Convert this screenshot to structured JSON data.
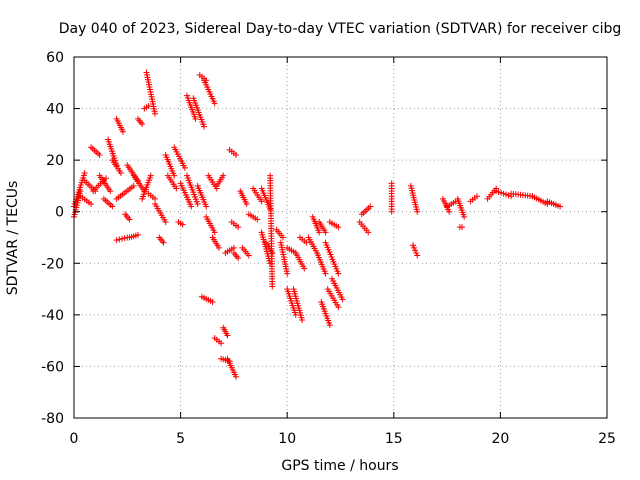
{
  "chart_data": {
    "type": "scatter",
    "title": "Day 040 of 2023, Sidereal Day-to-day VTEC variation (SDTVAR) for receiver cibg",
    "xlabel": "GPS time / hours",
    "ylabel": "SDTVAR / TECUs",
    "xlim": [
      0,
      25
    ],
    "ylim": [
      -80,
      60
    ],
    "xticks": [
      "0",
      "5",
      "10",
      "15",
      "20",
      "25"
    ],
    "yticks": [
      "-80",
      "-60",
      "-40",
      "-20",
      "0",
      "20",
      "40",
      "60"
    ],
    "grid": true,
    "marker": "+",
    "color": "#ff0000",
    "series": [
      {
        "name": "SDTVAR",
        "segments": [
          {
            "x": [
              0.0,
              0.5
            ],
            "y": [
              2,
              15
            ]
          },
          {
            "x": [
              0.0,
              0.3
            ],
            "y": [
              -2,
              8
            ]
          },
          {
            "x": [
              0.3,
              0.8
            ],
            "y": [
              6,
              3
            ]
          },
          {
            "x": [
              0.5,
              1.0
            ],
            "y": [
              12,
              8
            ]
          },
          {
            "x": [
              0.8,
              1.2
            ],
            "y": [
              25,
              22
            ]
          },
          {
            "x": [
              0.9,
              1.5
            ],
            "y": [
              8,
              13
            ]
          },
          {
            "x": [
              1.2,
              1.7
            ],
            "y": [
              14,
              8
            ]
          },
          {
            "x": [
              1.4,
              1.8
            ],
            "y": [
              5,
              2
            ]
          },
          {
            "x": [
              1.6,
              2.0
            ],
            "y": [
              28,
              18
            ]
          },
          {
            "x": [
              1.8,
              2.2
            ],
            "y": [
              20,
              15
            ]
          },
          {
            "x": [
              2.0,
              2.3
            ],
            "y": [
              36,
              31
            ]
          },
          {
            "x": [
              2.0,
              2.5
            ],
            "y": [
              -11,
              -10
            ]
          },
          {
            "x": [
              2.0,
              2.8
            ],
            "y": [
              5,
              10
            ]
          },
          {
            "x": [
              2.5,
              3.0
            ],
            "y": [
              18,
              12
            ]
          },
          {
            "x": [
              2.4,
              2.6
            ],
            "y": [
              -1,
              -3
            ]
          },
          {
            "x": [
              2.6,
              3.0
            ],
            "y": [
              -10,
              -9
            ]
          },
          {
            "x": [
              2.8,
              3.3
            ],
            "y": [
              14,
              8
            ]
          },
          {
            "x": [
              3.0,
              3.2
            ],
            "y": [
              36,
              34
            ]
          },
          {
            "x": [
              3.2,
              3.6
            ],
            "y": [
              5,
              14
            ]
          },
          {
            "x": [
              3.3,
              3.5
            ],
            "y": [
              40,
              41
            ]
          },
          {
            "x": [
              3.4,
              3.8
            ],
            "y": [
              54,
              38
            ]
          },
          {
            "x": [
              3.5,
              3.8
            ],
            "y": [
              7,
              5
            ]
          },
          {
            "x": [
              3.8,
              4.3
            ],
            "y": [
              3,
              -4
            ]
          },
          {
            "x": [
              4.0,
              4.2
            ],
            "y": [
              -10,
              -12
            ]
          },
          {
            "x": [
              4.3,
              4.7
            ],
            "y": [
              22,
              14
            ]
          },
          {
            "x": [
              4.4,
              4.8
            ],
            "y": [
              14,
              9
            ]
          },
          {
            "x": [
              4.7,
              5.2
            ],
            "y": [
              25,
              17
            ]
          },
          {
            "x": [
              4.9,
              5.1
            ],
            "y": [
              -4,
              -5
            ]
          },
          {
            "x": [
              5.0,
              5.5
            ],
            "y": [
              11,
              2
            ]
          },
          {
            "x": [
              5.3,
              5.8
            ],
            "y": [
              14,
              3
            ]
          },
          {
            "x": [
              5.3,
              5.7
            ],
            "y": [
              45,
              36
            ]
          },
          {
            "x": [
              5.6,
              6.1
            ],
            "y": [
              44,
              33
            ]
          },
          {
            "x": [
              5.8,
              6.2
            ],
            "y": [
              10,
              2
            ]
          },
          {
            "x": [
              5.9,
              6.2
            ],
            "y": [
              53,
              51
            ]
          },
          {
            "x": [
              6.0,
              6.5
            ],
            "y": [
              -33,
              -35
            ]
          },
          {
            "x": [
              6.1,
              6.6
            ],
            "y": [
              51,
              42
            ]
          },
          {
            "x": [
              6.2,
              6.6
            ],
            "y": [
              -2,
              -8
            ]
          },
          {
            "x": [
              6.3,
              6.7
            ],
            "y": [
              14,
              9
            ]
          },
          {
            "x": [
              6.5,
              6.8
            ],
            "y": [
              -10,
              -14
            ]
          },
          {
            "x": [
              6.6,
              6.9
            ],
            "y": [
              -49,
              -51
            ]
          },
          {
            "x": [
              6.7,
              7.0
            ],
            "y": [
              10,
              14
            ]
          },
          {
            "x": [
              6.9,
              7.3
            ],
            "y": [
              -57,
              -58
            ]
          },
          {
            "x": [
              7.0,
              7.2
            ],
            "y": [
              -45,
              -48
            ]
          },
          {
            "x": [
              7.1,
              7.5
            ],
            "y": [
              -16,
              -14
            ]
          },
          {
            "x": [
              7.2,
              7.6
            ],
            "y": [
              -57,
              -64
            ]
          },
          {
            "x": [
              7.3,
              7.6
            ],
            "y": [
              24,
              22
            ]
          },
          {
            "x": [
              7.4,
              7.7
            ],
            "y": [
              -4,
              -6
            ]
          },
          {
            "x": [
              7.5,
              7.7
            ],
            "y": [
              -16,
              -18
            ]
          },
          {
            "x": [
              7.8,
              8.1
            ],
            "y": [
              8,
              3
            ]
          },
          {
            "x": [
              7.9,
              8.2
            ],
            "y": [
              -14,
              -17
            ]
          },
          {
            "x": [
              8.2,
              8.6
            ],
            "y": [
              -1,
              -3
            ]
          },
          {
            "x": [
              8.4,
              8.8
            ],
            "y": [
              9,
              4
            ]
          },
          {
            "x": [
              8.8,
              9.2
            ],
            "y": [
              9,
              1
            ]
          },
          {
            "x": [
              8.8,
              9.2
            ],
            "y": [
              -8,
              -20
            ]
          },
          {
            "x": [
              9.0,
              9.3
            ],
            "y": [
              -12,
              -16
            ]
          },
          {
            "x": [
              9.2,
              9.3
            ],
            "y": [
              14,
              -29
            ]
          },
          {
            "x": [
              9.5,
              9.8
            ],
            "y": [
              -7,
              -10
            ]
          },
          {
            "x": [
              9.7,
              10.0
            ],
            "y": [
              -12,
              -24
            ]
          },
          {
            "x": [
              10.0,
              10.4
            ],
            "y": [
              -14,
              -16
            ]
          },
          {
            "x": [
              10.0,
              10.4
            ],
            "y": [
              -30,
              -40
            ]
          },
          {
            "x": [
              10.3,
              10.7
            ],
            "y": [
              -30,
              -42
            ]
          },
          {
            "x": [
              10.4,
              10.8
            ],
            "y": [
              -16,
              -22
            ]
          },
          {
            "x": [
              10.6,
              10.9
            ],
            "y": [
              -10,
              -12
            ]
          },
          {
            "x": [
              11.0,
              11.4
            ],
            "y": [
              -10,
              -16
            ]
          },
          {
            "x": [
              11.2,
              11.5
            ],
            "y": [
              -2,
              -8
            ]
          },
          {
            "x": [
              11.4,
              11.8
            ],
            "y": [
              -16,
              -24
            ]
          },
          {
            "x": [
              11.5,
              11.8
            ],
            "y": [
              -4,
              -8
            ]
          },
          {
            "x": [
              11.6,
              12.0
            ],
            "y": [
              -35,
              -44
            ]
          },
          {
            "x": [
              11.8,
              12.4
            ],
            "y": [
              -12,
              -24
            ]
          },
          {
            "x": [
              11.9,
              12.4
            ],
            "y": [
              -30,
              -37
            ]
          },
          {
            "x": [
              12.0,
              12.4
            ],
            "y": [
              -4,
              -6
            ]
          },
          {
            "x": [
              12.1,
              12.6
            ],
            "y": [
              -26,
              -34
            ]
          },
          {
            "x": [
              13.4,
              13.8
            ],
            "y": [
              -4,
              -8
            ]
          },
          {
            "x": [
              13.5,
              13.9
            ],
            "y": [
              -1,
              2
            ]
          },
          {
            "x": [
              14.9,
              14.9
            ],
            "y": [
              11,
              0
            ]
          },
          {
            "x": [
              15.8,
              16.1
            ],
            "y": [
              10,
              0
            ]
          },
          {
            "x": [
              15.9,
              16.1
            ],
            "y": [
              -13,
              -17
            ]
          },
          {
            "x": [
              17.3,
              17.6
            ],
            "y": [
              5,
              0
            ]
          },
          {
            "x": [
              17.5,
              17.9
            ],
            "y": [
              2,
              4
            ]
          },
          {
            "x": [
              18.0,
              18.3
            ],
            "y": [
              5,
              -2
            ]
          },
          {
            "x": [
              18.1,
              18.2
            ],
            "y": [
              -6,
              -6
            ]
          },
          {
            "x": [
              18.6,
              18.9
            ],
            "y": [
              4,
              6
            ]
          },
          {
            "x": [
              19.4,
              19.8
            ],
            "y": [
              5,
              9
            ]
          },
          {
            "x": [
              19.8,
              20.5
            ],
            "y": [
              8,
              6
            ]
          },
          {
            "x": [
              20.5,
              21.5
            ],
            "y": [
              7,
              6
            ]
          },
          {
            "x": [
              21.5,
              22.2
            ],
            "y": [
              6,
              3
            ]
          },
          {
            "x": [
              22.2,
              22.8
            ],
            "y": [
              4,
              2
            ]
          }
        ]
      }
    ]
  }
}
